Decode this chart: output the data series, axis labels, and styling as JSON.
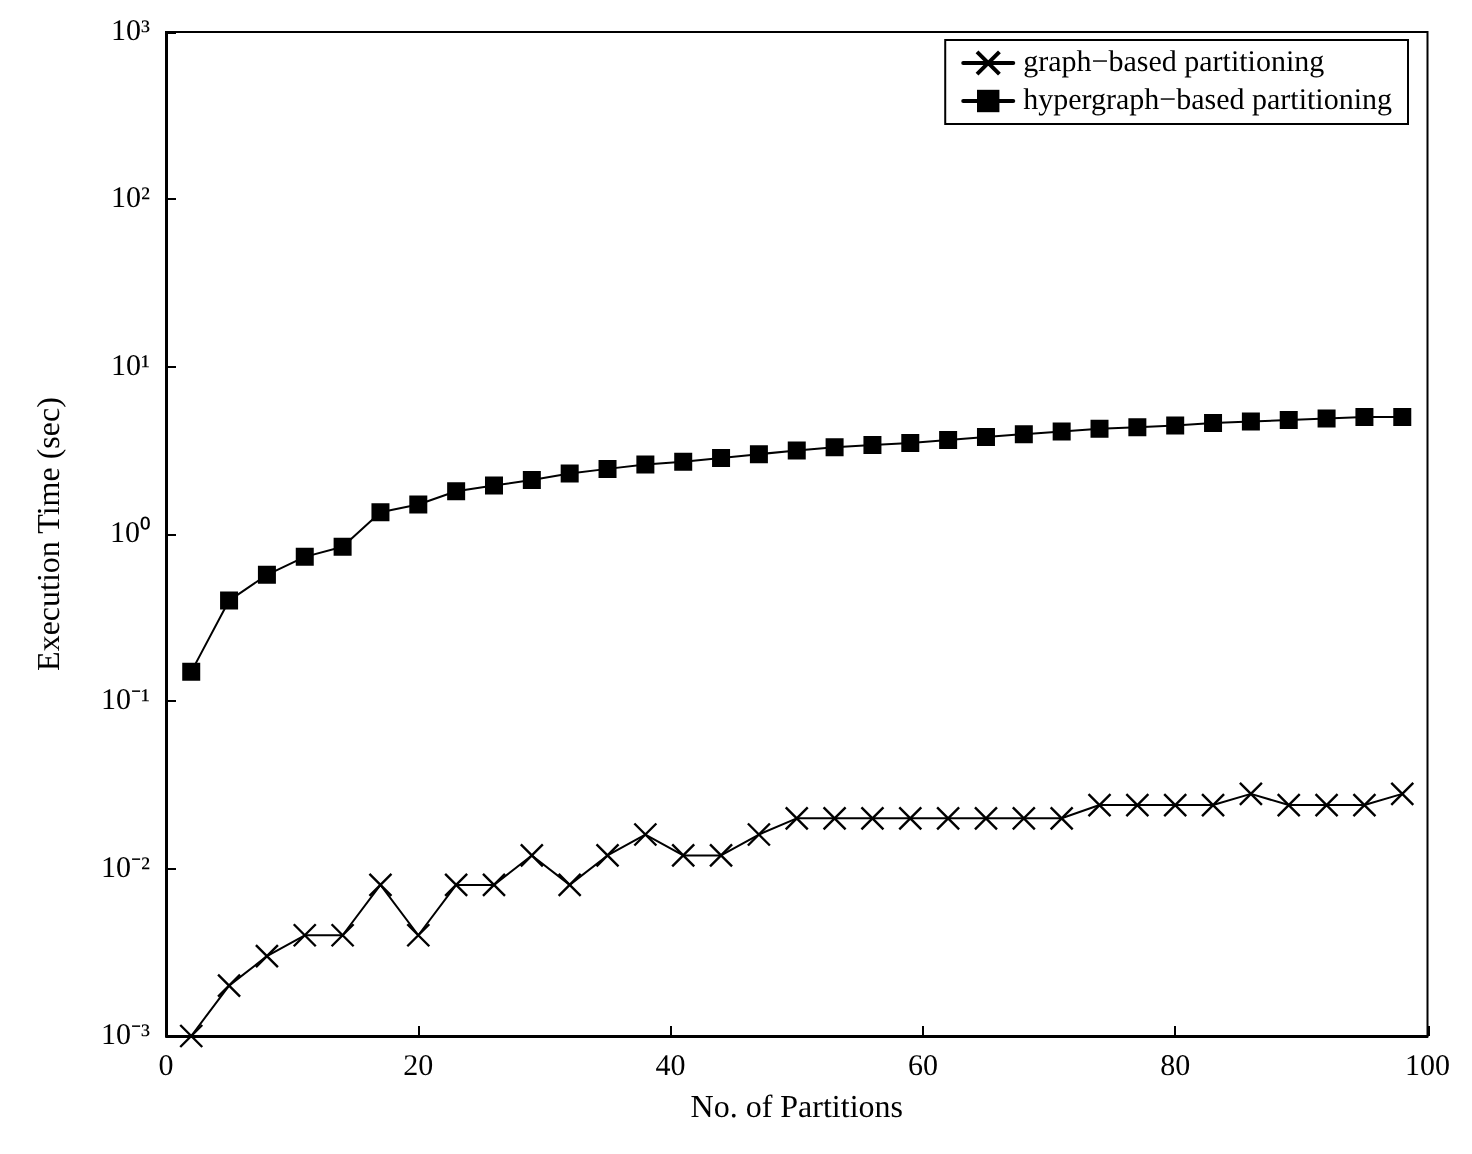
{
  "chart_data": {
    "type": "line",
    "xlabel": "No. of Partitions",
    "ylabel": "Execution Time (sec)",
    "log": "y",
    "grid": false,
    "legend": "top right",
    "xlim": [
      0,
      100
    ],
    "xticks": [
      0,
      20,
      40,
      60,
      80,
      100
    ],
    "ylim": [
      0.001,
      1000
    ],
    "yticks": [
      {
        "value": 0.001,
        "label": "10⁻³"
      },
      {
        "value": 0.01,
        "label": "10⁻²"
      },
      {
        "value": 0.1,
        "label": "10⁻¹"
      },
      {
        "value": 1,
        "label": "10⁰"
      },
      {
        "value": 10,
        "label": "10¹"
      },
      {
        "value": 100,
        "label": "10²"
      },
      {
        "value": 1000,
        "label": "10³"
      }
    ],
    "x": [
      2,
      5,
      8,
      11,
      14,
      17,
      20,
      23,
      26,
      29,
      32,
      35,
      38,
      41,
      44,
      47,
      50,
      53,
      56,
      59,
      62,
      65,
      68,
      71,
      74,
      77,
      80,
      83,
      86,
      89,
      92,
      95,
      98
    ],
    "series": [
      {
        "name": "graph−based partitioning",
        "color": "#000000",
        "marker": "cross",
        "line_style": "solid",
        "values": [
          0.001,
          0.002,
          0.003,
          0.004,
          0.004,
          0.008,
          0.004,
          0.008,
          0.008,
          0.012,
          0.008,
          0.012,
          0.016,
          0.012,
          0.012,
          0.016,
          0.02,
          0.02,
          0.02,
          0.02,
          0.02,
          0.02,
          0.02,
          0.02,
          0.024,
          0.024,
          0.024,
          0.024,
          0.028,
          0.024,
          0.024,
          0.024,
          0.028
        ]
      },
      {
        "name": "hypergraph−based partitioning",
        "color": "#000000",
        "marker": "square",
        "line_style": "solid",
        "values": [
          0.15,
          0.4,
          0.57,
          0.73,
          0.84,
          1.35,
          1.5,
          1.8,
          1.95,
          2.1,
          2.3,
          2.45,
          2.6,
          2.7,
          2.85,
          3.0,
          3.15,
          3.3,
          3.4,
          3.5,
          3.65,
          3.8,
          3.95,
          4.1,
          4.25,
          4.35,
          4.45,
          4.6,
          4.7,
          4.8,
          4.9,
          5.0,
          5.0
        ]
      }
    ]
  }
}
